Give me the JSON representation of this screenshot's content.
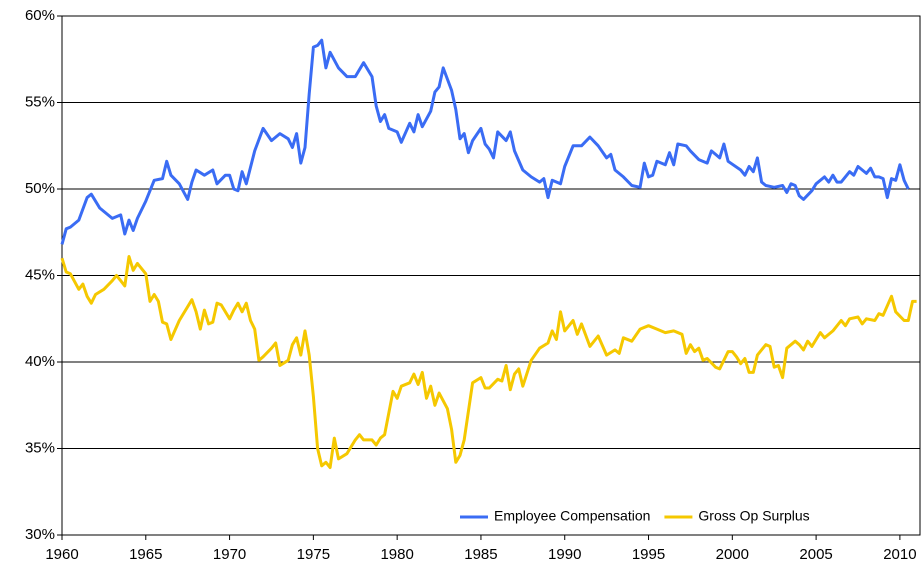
{
  "chart_data": {
    "type": "line",
    "xlim": [
      1960,
      2011.2
    ],
    "xticks": [
      1960,
      1965,
      1970,
      1975,
      1980,
      1985,
      1990,
      1995,
      2000,
      2005,
      2010
    ],
    "ylim": [
      30,
      60
    ],
    "yticks": [
      {
        "value": 30,
        "label": "30%"
      },
      {
        "value": 35,
        "label": "35%"
      },
      {
        "value": 40,
        "label": "40%"
      },
      {
        "value": 45,
        "label": "45%"
      },
      {
        "value": 50,
        "label": "50%"
      },
      {
        "value": 55,
        "label": "55%"
      },
      {
        "value": 60,
        "label": "60%"
      }
    ],
    "grid": true,
    "legend": "bottom-right",
    "series": [
      {
        "name": "Employee Compensation",
        "color": "#3a6cf4",
        "x": [
          1960,
          1960.25,
          1960.5,
          1961,
          1961.5,
          1961.75,
          1962.25,
          1963,
          1963.5,
          1963.75,
          1964,
          1964.25,
          1964.5,
          1965,
          1965.5,
          1966,
          1966.25,
          1966.5,
          1967,
          1967.5,
          1967.75,
          1968,
          1968.5,
          1969,
          1969.25,
          1969.75,
          1970,
          1970.25,
          1970.5,
          1970.75,
          1971,
          1971.5,
          1972,
          1972.5,
          1973,
          1973.5,
          1973.75,
          1974,
          1974.25,
          1974.5,
          1974.75,
          1975,
          1975.25,
          1975.5,
          1975.75,
          1976,
          1976.5,
          1977,
          1977.5,
          1978,
          1978.5,
          1978.75,
          1979,
          1979.25,
          1979.5,
          1980,
          1980.25,
          1980.75,
          1981,
          1981.25,
          1981.5,
          1982,
          1982.25,
          1982.5,
          1982.75,
          1983.25,
          1983.5,
          1983.75,
          1984,
          1984.25,
          1984.5,
          1985,
          1985.25,
          1985.5,
          1985.75,
          1986,
          1986.5,
          1986.75,
          1987,
          1987.5,
          1988,
          1988.5,
          1988.75,
          1989,
          1989.25,
          1989.75,
          1990,
          1990.5,
          1991,
          1991.5,
          1992,
          1992.5,
          1992.75,
          1993,
          1993.5,
          1994,
          1994.5,
          1994.75,
          1995,
          1995.25,
          1995.5,
          1996,
          1996.25,
          1996.5,
          1996.75,
          1997.25,
          1997.5,
          1998,
          1998.5,
          1998.75,
          1999,
          1999.25,
          1999.5,
          1999.75,
          2000.5,
          2000.75,
          2001,
          2001.25,
          2001.5,
          2001.75,
          2002,
          2002.5,
          2003,
          2003.25,
          2003.5,
          2003.75,
          2004,
          2004.25,
          2004.75,
          2005,
          2005.5,
          2005.75,
          2006,
          2006.25,
          2006.5,
          2007,
          2007.25,
          2007.5,
          2008,
          2008.25,
          2008.5,
          2008.75,
          2009,
          2009.25,
          2009.5,
          2009.75,
          2010,
          2010.25,
          2010.5
        ],
        "values": [
          46.8,
          47.7,
          47.8,
          48.2,
          49.5,
          49.7,
          48.9,
          48.3,
          48.5,
          47.4,
          48.2,
          47.6,
          48.3,
          49.3,
          50.5,
          50.6,
          51.6,
          50.8,
          50.3,
          49.4,
          50.4,
          51.1,
          50.8,
          51.1,
          50.3,
          50.8,
          50.8,
          50.0,
          49.9,
          51.0,
          50.3,
          52.2,
          53.5,
          52.8,
          53.2,
          52.9,
          52.4,
          53.2,
          51.5,
          52.4,
          55.5,
          58.2,
          58.3,
          58.6,
          57.0,
          57.9,
          57.0,
          56.5,
          56.5,
          57.3,
          56.5,
          54.8,
          53.9,
          54.3,
          53.5,
          53.3,
          52.7,
          53.8,
          53.3,
          54.3,
          53.6,
          54.5,
          55.6,
          55.9,
          57.0,
          55.7,
          54.6,
          52.9,
          53.2,
          52.1,
          52.8,
          53.5,
          52.6,
          52.3,
          51.8,
          53.3,
          52.8,
          53.3,
          52.2,
          51.1,
          50.7,
          50.4,
          50.6,
          49.5,
          50.5,
          50.3,
          51.3,
          52.5,
          52.5,
          53.0,
          52.5,
          51.8,
          52.0,
          51.1,
          50.7,
          50.2,
          50.1,
          51.5,
          50.7,
          50.8,
          51.6,
          51.4,
          52.1,
          51.4,
          52.6,
          52.5,
          52.2,
          51.7,
          51.5,
          52.2,
          52.0,
          51.8,
          52.6,
          51.6,
          51.1,
          50.8,
          51.3,
          51.0,
          51.8,
          50.4,
          50.2,
          50.1,
          50.2,
          49.8,
          50.3,
          50.2,
          49.6,
          49.4,
          49.9,
          50.3,
          50.7,
          50.4,
          50.8,
          50.4,
          50.4,
          51.0,
          50.8,
          51.3,
          50.9,
          51.2,
          50.7,
          50.7,
          50.6,
          49.5,
          50.6,
          50.5,
          51.4,
          50.5,
          50.0
        ]
      },
      {
        "name": "Gross Op Surplus",
        "color": "#f5c800",
        "x": [
          1960,
          1960.25,
          1960.5,
          1961,
          1961.25,
          1961.5,
          1961.75,
          1962,
          1962.5,
          1963,
          1963.25,
          1963.5,
          1963.75,
          1964,
          1964.25,
          1964.5,
          1965,
          1965.25,
          1965.5,
          1965.75,
          1966,
          1966.25,
          1966.5,
          1967,
          1967.5,
          1967.75,
          1968,
          1968.25,
          1968.5,
          1968.75,
          1969,
          1969.25,
          1969.5,
          1970,
          1970.25,
          1970.5,
          1970.75,
          1971,
          1971.25,
          1971.5,
          1971.75,
          1972,
          1972.5,
          1972.75,
          1973,
          1973.5,
          1973.75,
          1974,
          1974.25,
          1974.5,
          1974.75,
          1975,
          1975.25,
          1975.5,
          1975.75,
          1976,
          1976.25,
          1976.5,
          1977,
          1977.5,
          1977.75,
          1978,
          1978.5,
          1978.75,
          1979,
          1979.25,
          1979.75,
          1980,
          1980.25,
          1980.75,
          1981,
          1981.25,
          1981.5,
          1981.75,
          1982,
          1982.25,
          1982.5,
          1983,
          1983.25,
          1983.5,
          1983.75,
          1984,
          1984.5,
          1985,
          1985.25,
          1985.5,
          1986,
          1986.25,
          1986.5,
          1986.75,
          1987,
          1987.25,
          1987.5,
          1988,
          1988.5,
          1989,
          1989.25,
          1989.5,
          1989.75,
          1990,
          1990.5,
          1990.75,
          1991,
          1991.5,
          1992,
          1992.5,
          1993,
          1993.25,
          1993.5,
          1994,
          1994.5,
          1995,
          1995.5,
          1996,
          1996.5,
          1997,
          1997.25,
          1997.5,
          1997.75,
          1998,
          1998.25,
          1998.5,
          1999,
          1999.25,
          1999.75,
          2000,
          2000.25,
          2000.5,
          2000.75,
          2001,
          2001.25,
          2001.5,
          2002,
          2002.25,
          2002.5,
          2002.75,
          2003,
          2003.25,
          2003.75,
          2004,
          2004.25,
          2004.5,
          2004.75,
          2005,
          2005.25,
          2005.5,
          2006,
          2006.5,
          2006.75,
          2007,
          2007.5,
          2007.75,
          2008,
          2008.5,
          2008.75,
          2009,
          2009.5,
          2009.75,
          2010.25,
          2010.5,
          2010.75,
          2011
        ],
        "values": [
          46.0,
          45.2,
          45.1,
          44.2,
          44.5,
          43.8,
          43.4,
          43.9,
          44.2,
          44.7,
          45.0,
          44.7,
          44.4,
          46.1,
          45.3,
          45.7,
          45.1,
          43.5,
          43.9,
          43.5,
          42.3,
          42.2,
          41.3,
          42.4,
          43.2,
          43.6,
          42.9,
          41.9,
          43.0,
          42.2,
          42.3,
          43.4,
          43.3,
          42.5,
          43.0,
          43.4,
          42.9,
          43.4,
          42.4,
          41.9,
          40.1,
          40.3,
          40.8,
          41.1,
          39.8,
          40.1,
          41.0,
          41.4,
          40.4,
          41.8,
          40.4,
          38.0,
          35.0,
          34.0,
          34.2,
          33.9,
          35.6,
          34.4,
          34.7,
          35.5,
          35.8,
          35.5,
          35.5,
          35.2,
          35.6,
          35.8,
          38.3,
          37.9,
          38.6,
          38.8,
          39.3,
          38.7,
          39.4,
          37.9,
          38.6,
          37.5,
          38.2,
          37.3,
          36.1,
          34.2,
          34.6,
          35.5,
          38.8,
          39.1,
          38.5,
          38.5,
          39.0,
          38.9,
          39.8,
          38.4,
          39.3,
          39.6,
          38.6,
          40.1,
          40.8,
          41.1,
          41.8,
          41.3,
          42.9,
          41.8,
          42.4,
          41.6,
          42.2,
          40.9,
          41.5,
          40.4,
          40.7,
          40.5,
          41.4,
          41.2,
          41.9,
          42.1,
          41.9,
          41.7,
          41.8,
          41.6,
          40.5,
          41.0,
          40.6,
          40.8,
          40.1,
          40.2,
          39.7,
          39.6,
          40.6,
          40.6,
          40.3,
          39.9,
          40.2,
          39.4,
          39.4,
          40.4,
          41.0,
          40.9,
          39.7,
          39.8,
          39.1,
          40.8,
          41.2,
          41.0,
          40.7,
          41.2,
          40.9,
          41.3,
          41.7,
          41.4,
          41.8,
          42.4,
          42.1,
          42.5,
          42.6,
          42.2,
          42.5,
          42.4,
          42.8,
          42.7,
          43.8,
          42.9,
          42.4,
          42.4,
          43.5,
          43.5
        ]
      }
    ]
  }
}
